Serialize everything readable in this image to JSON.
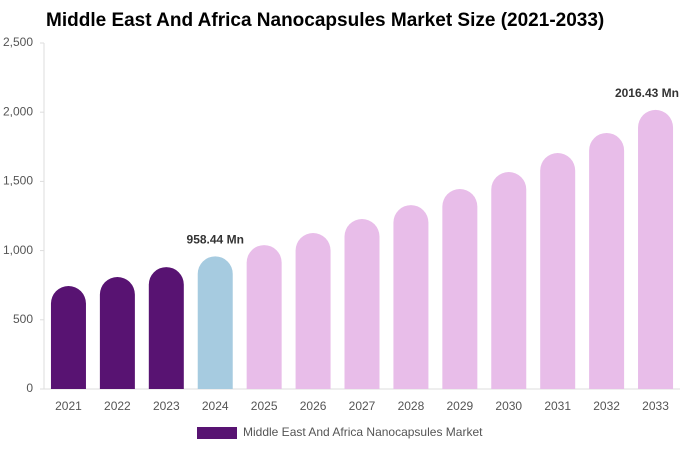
{
  "chart_data": {
    "type": "bar",
    "title": "Middle East And Africa Nanocapsules Market Size (2021-2033)",
    "categories": [
      "2021",
      "2022",
      "2023",
      "2024",
      "2025",
      "2026",
      "2027",
      "2028",
      "2029",
      "2030",
      "2031",
      "2032",
      "2033"
    ],
    "series": [
      {
        "name": "Middle East And Africa Nanocapsules Market",
        "color": "#581372",
        "values": [
          744,
          809,
          881,
          958.44,
          1040,
          1127,
          1228,
          1329,
          1445,
          1568,
          1705,
          1850,
          2016.43
        ],
        "value_labels": [
          null,
          null,
          null,
          "958.44 Mn",
          null,
          null,
          null,
          null,
          null,
          null,
          null,
          null,
          "2016.43 Mn"
        ],
        "colors": [
          "#581372",
          "#581372",
          "#581372",
          "#a6cbe0",
          "#e8bde9",
          "#e8bde9",
          "#e8bde9",
          "#e8bde9",
          "#e8bde9",
          "#e8bde9",
          "#e8bde9",
          "#e8bde9",
          "#e8bde9"
        ]
      }
    ],
    "ylim": [
      0,
      2500
    ],
    "yticks": [
      0,
      500,
      {
        "value": 1000,
        "label": "1,000"
      },
      {
        "value": 1500,
        "label": "1,500"
      },
      {
        "value": 2000,
        "label": "2,000"
      },
      {
        "value": 2500,
        "label": "2,500"
      }
    ],
    "grid": false
  }
}
